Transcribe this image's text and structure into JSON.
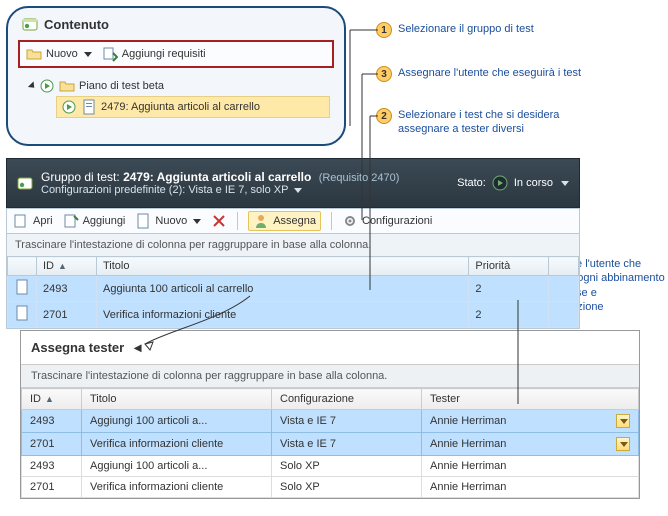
{
  "contentPanel": {
    "title": "Contenuto",
    "toolbar": {
      "new": "Nuovo",
      "addReq": "Aggiungi requisiti"
    },
    "tree": {
      "plan": "Piano di test beta",
      "suite": "2479: Aggiunta articoli al carrello"
    }
  },
  "callouts": {
    "c1": "Selezionare il gruppo di test",
    "c2": "Selezionare i test che si desidera assegnare a tester diversi",
    "c3": "Assegnare l'utente che eseguirà i test",
    "c4": "Designare l'utente che eseguirà ogni abbinamento di test case e configurazione"
  },
  "suiteBar": {
    "label": "Gruppo di test:",
    "name": "2479: Aggiunta articoli al carrello",
    "requirement": "(Requisito 2470)",
    "configLine": "Configurazioni predefinite (2): Vista e IE 7, solo XP",
    "stateLabel": "Stato:",
    "stateValue": "In corso"
  },
  "toolbar2": {
    "open": "Apri",
    "add": "Aggiungi",
    "new": "Nuovo",
    "assign": "Assegna",
    "configs": "Configurazioni"
  },
  "gridShared": {
    "groupHint": "Trascinare l'intestazione di colonna per raggruppare in base alla colonna."
  },
  "grid1": {
    "columns": {
      "id": "ID",
      "title": "Titolo",
      "priority": "Priorità"
    },
    "rows": [
      {
        "id": "2493",
        "title": "Aggiunta 100 articoli al carrello",
        "priority": "2"
      },
      {
        "id": "2701",
        "title": "Verifica informazioni cliente",
        "priority": "2"
      }
    ]
  },
  "assignPanel": {
    "title": "Assegna tester",
    "columns": {
      "id": "ID",
      "title": "Titolo",
      "config": "Configurazione",
      "tester": "Tester"
    },
    "rows": [
      {
        "id": "2493",
        "title": "Aggiungi 100 articoli a...",
        "config": "Vista e IE 7",
        "tester": "Annie Herriman",
        "selected": true
      },
      {
        "id": "2701",
        "title": "Verifica informazioni cliente",
        "config": "Vista e IE 7",
        "tester": "Annie Herriman",
        "selected": true
      },
      {
        "id": "2493",
        "title": "Aggiungi 100 articoli a...",
        "config": "Solo XP",
        "tester": "Annie Herriman",
        "selected": false
      },
      {
        "id": "2701",
        "title": "Verifica informazioni cliente",
        "config": "Solo XP",
        "tester": "Annie Herriman",
        "selected": false
      }
    ]
  },
  "colors": {
    "panelBorder": "#1b4b7a",
    "redBox": "#a72020",
    "selRow": "#bfe0ff",
    "badge": "#ffcc66",
    "link": "#1a4e9c"
  }
}
